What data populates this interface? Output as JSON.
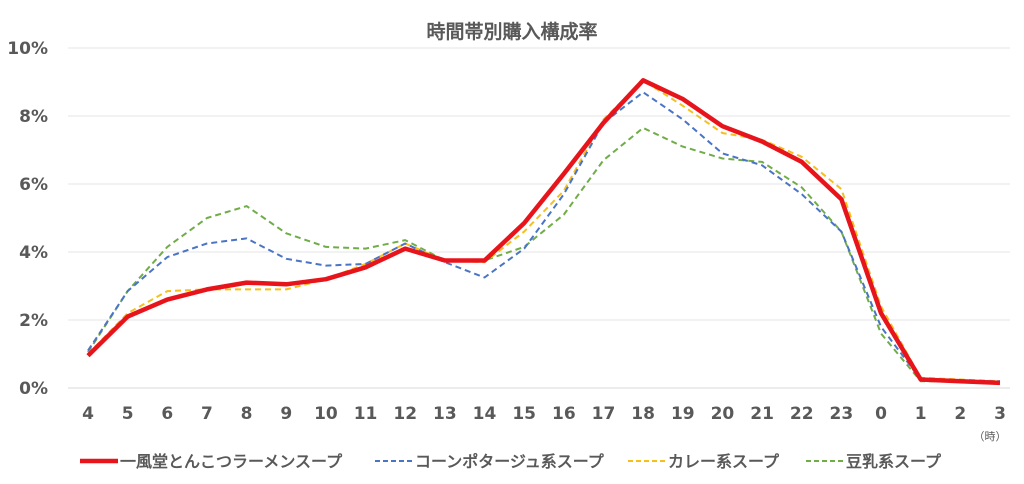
{
  "chart_data": {
    "type": "line",
    "title": "時間帯別購入構成率",
    "xlabel": "（時）",
    "ylabel": "",
    "categories": [
      "4",
      "5",
      "6",
      "7",
      "8",
      "9",
      "10",
      "11",
      "12",
      "13",
      "14",
      "15",
      "16",
      "17",
      "18",
      "19",
      "20",
      "21",
      "22",
      "23",
      "0",
      "1",
      "2",
      "3"
    ],
    "ylim": [
      0,
      10
    ],
    "yticks": [
      "0%",
      "2%",
      "4%",
      "6%",
      "8%",
      "10%"
    ],
    "grid": true,
    "legend": "bottom",
    "series": [
      {
        "name": "一風堂とんこつラーメンスープ",
        "color": "#e8141b",
        "style": "solid",
        "values": [
          0.95,
          2.1,
          2.6,
          2.9,
          3.1,
          3.05,
          3.2,
          3.55,
          4.1,
          3.75,
          3.75,
          4.85,
          6.3,
          7.8,
          9.05,
          8.5,
          7.7,
          7.25,
          6.65,
          5.55,
          2.2,
          0.25,
          0.2,
          0.15
        ]
      },
      {
        "name": "コーンポタージュ系スープ",
        "color": "#4a74c4",
        "style": "dashed",
        "values": [
          1.1,
          2.85,
          3.85,
          4.25,
          4.4,
          3.8,
          3.6,
          3.65,
          4.25,
          3.7,
          3.25,
          4.1,
          5.7,
          7.8,
          8.7,
          7.9,
          6.9,
          6.55,
          5.7,
          4.6,
          1.8,
          0.25,
          0.2,
          0.2
        ]
      },
      {
        "name": "カレー系スープ",
        "color": "#f5c01e",
        "style": "dashed",
        "values": [
          1.0,
          2.2,
          2.85,
          2.9,
          2.9,
          2.9,
          3.2,
          3.65,
          4.25,
          3.75,
          3.7,
          4.6,
          5.8,
          7.9,
          9.05,
          8.3,
          7.5,
          7.3,
          6.8,
          5.85,
          2.4,
          0.3,
          0.25,
          0.2
        ]
      },
      {
        "name": "豆乳系スープ",
        "color": "#70ad47",
        "style": "dashed",
        "values": [
          1.05,
          2.85,
          4.15,
          5.0,
          5.35,
          4.55,
          4.15,
          4.1,
          4.35,
          3.75,
          3.75,
          4.15,
          5.1,
          6.7,
          7.65,
          7.1,
          6.75,
          6.65,
          5.9,
          4.6,
          1.6,
          0.2,
          0.2,
          0.2
        ]
      }
    ]
  }
}
